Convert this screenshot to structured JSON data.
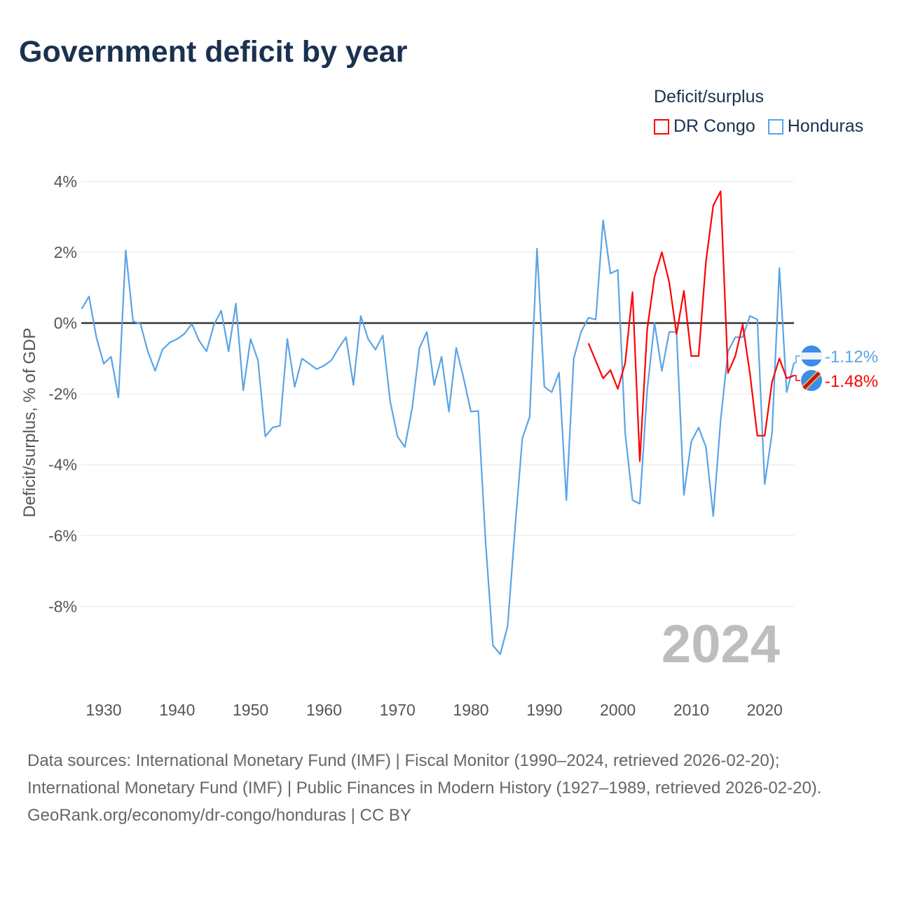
{
  "title": "Government deficit by year",
  "legend": {
    "title": "Deficit/surplus",
    "items": [
      {
        "name": "DR Congo",
        "color": "#ff0000"
      },
      {
        "name": "Honduras",
        "color": "#5ba4e6"
      }
    ]
  },
  "watermark_year": "2024",
  "footer": {
    "sources": "Data sources: International Monetary Fund (IMF) | Fiscal Monitor (1990–2024, retrieved 2026-02-20); International Monetary Fund (IMF) | Public Finances in Modern History (1927–1989, retrieved 2026-02-20).",
    "credit": "GeoRank.org/economy/dr-congo/honduras | CC BY"
  },
  "chart_data": {
    "type": "line",
    "title": "Government deficit by year",
    "xlabel": "",
    "ylabel": "Deficit/surplus, % of GDP",
    "xlim": [
      1927,
      2024
    ],
    "ylim": [
      -10,
      4
    ],
    "yticks": [
      4,
      2,
      0,
      -2,
      -4,
      -6,
      -8
    ],
    "ytick_labels": [
      "4%",
      "2%",
      "0%",
      "-2%",
      "-4%",
      "-6%",
      "-8%"
    ],
    "xticks": [
      1930,
      1940,
      1950,
      1960,
      1970,
      1980,
      1990,
      2000,
      2010,
      2020
    ],
    "xtick_labels": [
      "1930",
      "1940",
      "1950",
      "1960",
      "1970",
      "1980",
      "1990",
      "2000",
      "2010",
      "2020"
    ],
    "grid": true,
    "legend_position": "top-right",
    "series": [
      {
        "name": "Honduras",
        "color": "#5ba4e6",
        "start_year": 1927,
        "end_label": "-1.12%",
        "values": [
          0.4,
          0.75,
          -0.4,
          -1.15,
          -0.95,
          -2.1,
          2.05,
          0.05,
          -0.02,
          -0.8,
          -1.35,
          -0.75,
          -0.55,
          -0.45,
          -0.3,
          -0.02,
          -0.5,
          -0.8,
          -0.05,
          0.35,
          -0.8,
          0.55,
          -1.9,
          -0.45,
          -1.05,
          -3.2,
          -2.95,
          -2.9,
          -0.45,
          -1.8,
          -1.0,
          -1.15,
          -1.3,
          -1.2,
          -1.05,
          -0.7,
          -0.4,
          -1.75,
          0.2,
          -0.45,
          -0.75,
          -0.35,
          -2.2,
          -3.2,
          -3.5,
          -2.4,
          -0.7,
          -0.25,
          -1.75,
          -0.95,
          -2.5,
          -0.7,
          -1.55,
          -2.5,
          -2.48,
          -6.2,
          -9.1,
          -9.35,
          -8.55,
          -5.8,
          -3.25,
          -2.65,
          2.1,
          -1.8,
          -1.95,
          -1.4,
          -5.0,
          -1.0,
          -0.25,
          0.15,
          0.1,
          2.9,
          1.4,
          1.5,
          -3.1,
          -5.0,
          -5.1,
          -1.9,
          0.0,
          -1.35,
          -0.25,
          -0.25,
          -4.85,
          -3.35,
          -2.95,
          -3.5,
          -5.45,
          -2.75,
          -0.8,
          -0.4,
          -0.4,
          0.2,
          0.1,
          -4.55,
          -3.1,
          1.55,
          -1.95,
          -1.12
        ]
      },
      {
        "name": "DR Congo",
        "color": "#ff0000",
        "start_year": 1996,
        "end_label": "-1.48%",
        "values": [
          -0.57,
          -1.07,
          -1.56,
          -1.33,
          -1.86,
          -1.13,
          0.87,
          -3.9,
          -0.18,
          1.31,
          2.0,
          1.15,
          -0.31,
          0.91,
          -0.93,
          -0.93,
          1.74,
          3.32,
          3.72,
          -1.41,
          -0.93,
          -0.04,
          -1.43,
          -3.18,
          -3.18,
          -1.66,
          -1.0,
          -1.56,
          -1.48
        ]
      }
    ]
  }
}
